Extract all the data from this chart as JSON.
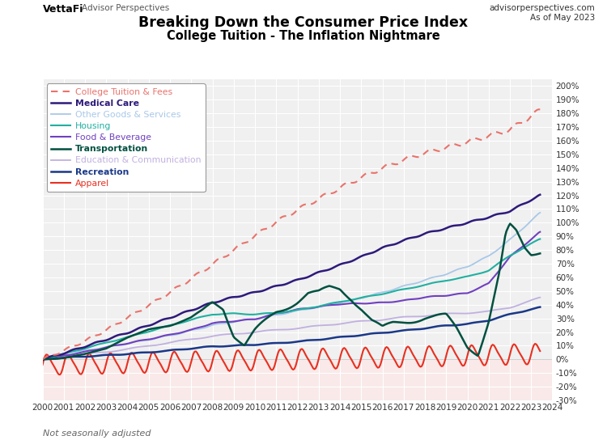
{
  "title1": "Breaking Down the Consumer Price Index",
  "title2": "College Tuition - The Inflation Nightmare",
  "branding_vettafi": "VettaFi",
  "branding_ap": "Advisor Perspectives",
  "branding_right": "advisorperspectives.com\nAs of May 2023",
  "note": "Not seasonally adjusted",
  "xlim": [
    2000,
    2024
  ],
  "ylim": [
    -0.3,
    2.05
  ],
  "yticks": [
    -0.3,
    -0.2,
    -0.1,
    0.0,
    0.1,
    0.2,
    0.3,
    0.4,
    0.5,
    0.6,
    0.7,
    0.8,
    0.9,
    1.0,
    1.1,
    1.2,
    1.3,
    1.4,
    1.5,
    1.6,
    1.7,
    1.8,
    1.9,
    2.0
  ],
  "ytick_labels": [
    "-30%",
    "-20%",
    "-10%",
    "0%",
    "10%",
    "20%",
    "30%",
    "40%",
    "50%",
    "60%",
    "70%",
    "80%",
    "90%",
    "100%",
    "110%",
    "120%",
    "130%",
    "140%",
    "150%",
    "160%",
    "170%",
    "180%",
    "190%",
    "200%"
  ],
  "xticks": [
    2000,
    2001,
    2002,
    2003,
    2004,
    2005,
    2006,
    2007,
    2008,
    2009,
    2010,
    2011,
    2012,
    2013,
    2014,
    2015,
    2016,
    2017,
    2018,
    2019,
    2020,
    2021,
    2022,
    2023,
    2024
  ],
  "series": {
    "College Tuition & Fees": {
      "color": "#e8736c",
      "linestyle": "--",
      "linewidth": 1.5,
      "bold": false,
      "legend_bold": false
    },
    "Medical Care": {
      "color": "#2e1a7a",
      "linestyle": "-",
      "linewidth": 1.8,
      "bold": false,
      "legend_bold": true
    },
    "Other Goods & Services": {
      "color": "#a8c8e8",
      "linestyle": "-",
      "linewidth": 1.3,
      "bold": false,
      "legend_bold": false
    },
    "Housing": {
      "color": "#20b0a0",
      "linestyle": "-",
      "linewidth": 1.5,
      "bold": false,
      "legend_bold": false
    },
    "Food & Beverage": {
      "color": "#7040c0",
      "linestyle": "-",
      "linewidth": 1.5,
      "bold": false,
      "legend_bold": false
    },
    "Transportation": {
      "color": "#005040",
      "linestyle": "-",
      "linewidth": 1.8,
      "bold": false,
      "legend_bold": true
    },
    "Education & Communication": {
      "color": "#c0b0e0",
      "linestyle": "-",
      "linewidth": 1.3,
      "bold": false,
      "legend_bold": false
    },
    "Recreation": {
      "color": "#1a3888",
      "linestyle": "-",
      "linewidth": 1.8,
      "bold": false,
      "legend_bold": true
    },
    "Apparel": {
      "color": "#e83020",
      "linestyle": "-",
      "linewidth": 1.5,
      "bold": false,
      "legend_bold": false
    }
  },
  "background_color": "#ffffff",
  "plot_bg_color": "#f0f0f0",
  "apparel_bg_color": "#fce8e8",
  "legend_order": [
    "College Tuition & Fees",
    "Medical Care",
    "Other Goods & Services",
    "Housing",
    "Food & Beverage",
    "Transportation",
    "Education & Communication",
    "Recreation",
    "Apparel"
  ]
}
